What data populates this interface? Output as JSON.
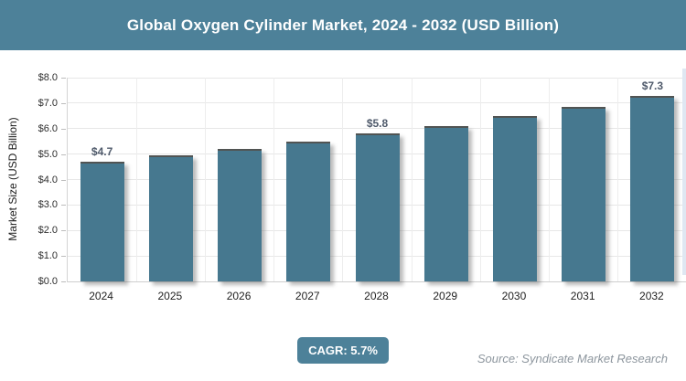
{
  "header": {
    "title": "Global Oxygen Cylinder Market, 2024 - 2032 (USD Billion)"
  },
  "chart_data": {
    "type": "bar",
    "title": "Global Oxygen Cylinder Market, 2024 - 2032 (USD Billion)",
    "categories": [
      "2024",
      "2025",
      "2026",
      "2027",
      "2028",
      "2029",
      "2030",
      "2031",
      "2032"
    ],
    "values": [
      4.7,
      4.95,
      5.2,
      5.5,
      5.8,
      6.1,
      6.5,
      6.85,
      7.3
    ],
    "data_labels": [
      "$4.7",
      null,
      null,
      null,
      "$5.8",
      null,
      null,
      null,
      "$7.3"
    ],
    "xlabel": "",
    "ylabel": "Market Size (USD Billion)",
    "ylim": [
      0,
      8
    ],
    "ytick_step": 1,
    "ytick_labels": [
      "$0.0",
      "$1.0",
      "$2.0",
      "$3.0",
      "$4.0",
      "$5.0",
      "$6.0",
      "$7.0",
      "$8.0"
    ],
    "grid": true,
    "legend": false,
    "bar_color": "#46788F"
  },
  "footer": {
    "cagr_label": "CAGR: 5.7%",
    "source": "Source: Syndicate Market Research"
  },
  "colors": {
    "banner": "#4D8199",
    "bar": "#46788F",
    "badge": "#4D8199",
    "data_label": "#4F5A6B",
    "source_text": "#8D969E",
    "gridline": "#E7E7E7"
  }
}
